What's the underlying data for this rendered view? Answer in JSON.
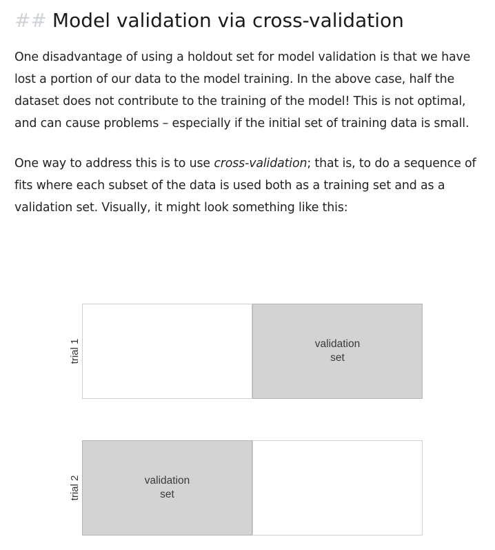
{
  "heading": {
    "prefix": "##",
    "title": "Model validation via cross-validation"
  },
  "paragraphs": {
    "p1": "One disadvantage of using a holdout set for model validation is that we have lost a portion of our data to the model training. In the above case, half the dataset does not contribute to the training of the model! This is not optimal, and can cause problems – especially if the initial set of training data is small.",
    "p2_before": "One way to address this is to use ",
    "p2_em": "cross-validation",
    "p2_after": "; that is, to do a sequence of fits where each subset of the data is used both as a training set and as a validation set. Visually, it might look something like this:"
  },
  "figure": {
    "trials": [
      {
        "label": "trial 1",
        "validation_label": "validation\nset",
        "validation_position": "right"
      },
      {
        "label": "trial 2",
        "validation_label": "validation\nset",
        "validation_position": "left"
      }
    ],
    "colors": {
      "validation_fill": "#d3d3d3",
      "training_fill": "#ffffff",
      "border": "#cfcfcf"
    }
  }
}
